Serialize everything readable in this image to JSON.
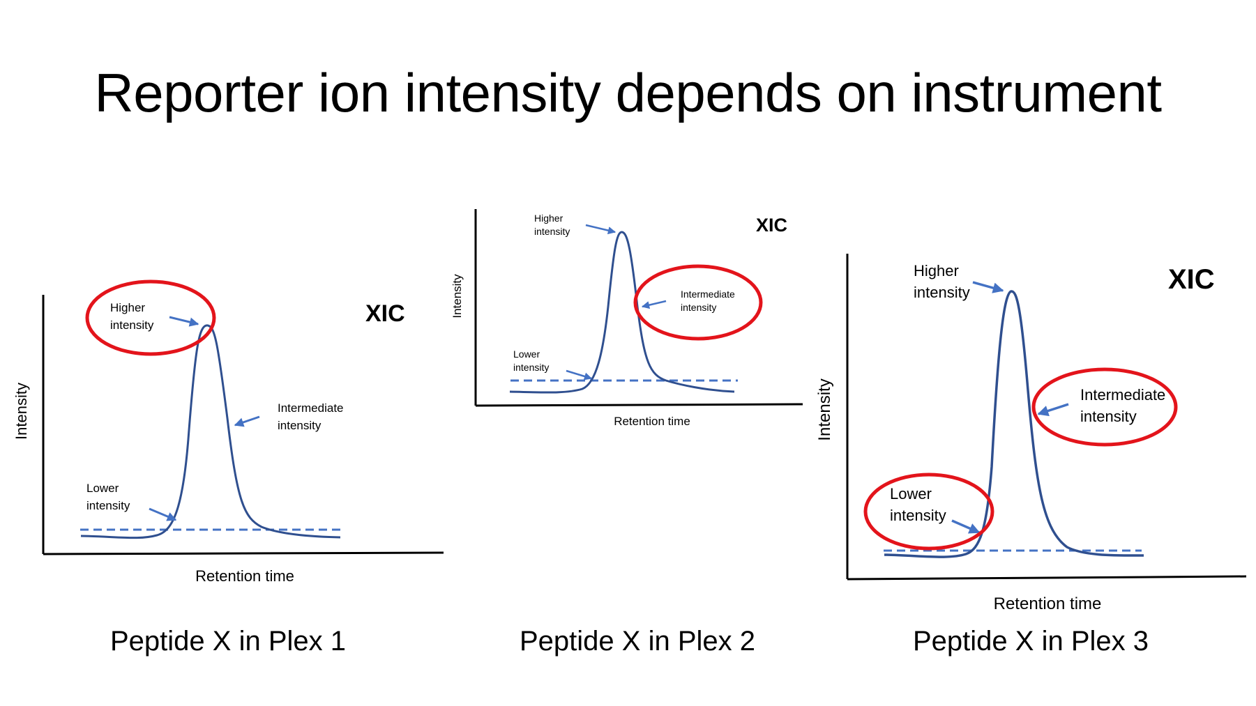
{
  "slide": {
    "title": "Reporter ion intensity depends on instrument"
  },
  "colors": {
    "curve": "#2f4f8f",
    "baseline": "#4472c4",
    "arrow": "#4472c4",
    "highlight": "#e3141b",
    "axis": "#000000"
  },
  "panels": [
    {
      "caption": "Peptide X in Plex 1",
      "xic_label": "XIC",
      "y_axis_label": "Intensity",
      "x_axis_label": "Retention time",
      "higher": {
        "line1": "Higher",
        "line2": "intensity"
      },
      "intermediate": {
        "line1": "Intermediate",
        "line2": "intensity"
      },
      "lower": {
        "line1": "Lower",
        "line2": "intensity"
      },
      "highlighted": [
        "higher"
      ]
    },
    {
      "caption": "Peptide X in Plex 2",
      "xic_label": "XIC",
      "y_axis_label": "Intensity",
      "x_axis_label": "Retention time",
      "higher": {
        "line1": "Higher",
        "line2": "intensity"
      },
      "intermediate": {
        "line1": "Intermediate",
        "line2": "intensity"
      },
      "lower": {
        "line1": "Lower",
        "line2": "intensity"
      },
      "highlighted": [
        "intermediate"
      ]
    },
    {
      "caption": "Peptide X in Plex 3",
      "xic_label": "XIC",
      "y_axis_label": "Intensity",
      "x_axis_label": "Retention time",
      "higher": {
        "line1": "Higher",
        "line2": "intensity"
      },
      "intermediate": {
        "line1": "Intermediate",
        "line2": "intensity"
      },
      "lower": {
        "line1": "Lower",
        "line2": "intensity"
      },
      "highlighted": [
        "intermediate",
        "lower"
      ]
    }
  ]
}
